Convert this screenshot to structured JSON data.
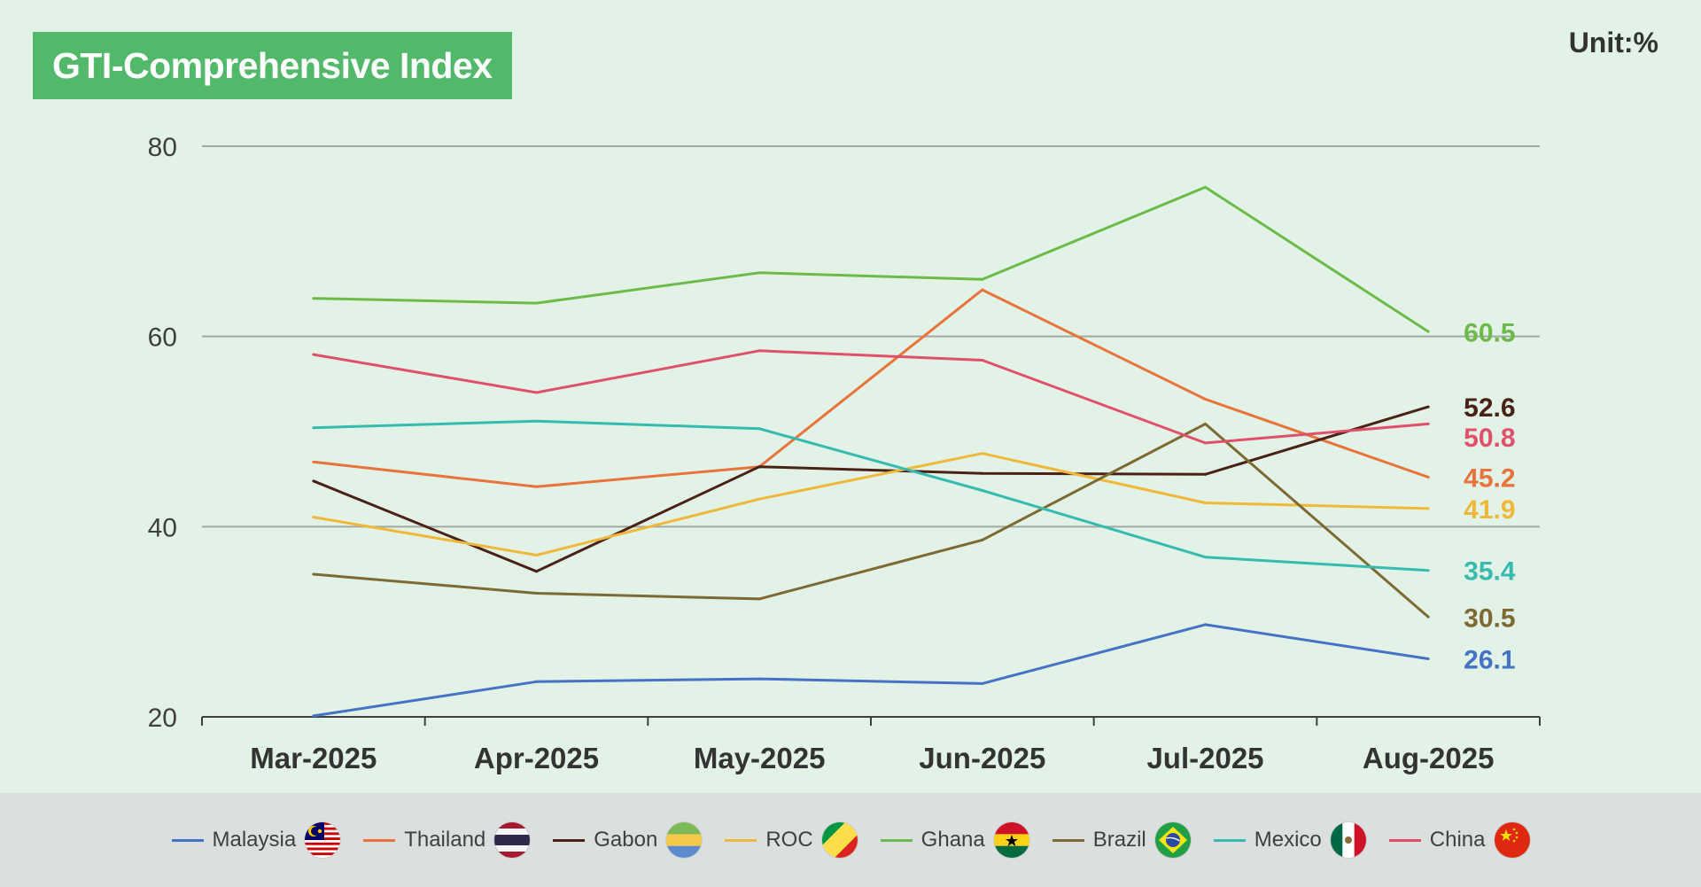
{
  "title": "GTI-Comprehensive Index",
  "unit": "Unit:%",
  "chart_data": {
    "type": "line",
    "categories": [
      "Mar-2025",
      "Apr-2025",
      "May-2025",
      "Jun-2025",
      "Jul-2025",
      "Aug-2025"
    ],
    "ylim": [
      20,
      80
    ],
    "yticks": [
      "20",
      "40",
      "60",
      "80"
    ],
    "grid": true,
    "legend_position": "bottom",
    "series": [
      {
        "name": "Malaysia",
        "color": "#4472c4",
        "values": [
          20.1,
          23.7,
          24.0,
          23.5,
          29.7,
          26.1
        ],
        "end_label": "26.1",
        "flag": "malaysia-flag-icon"
      },
      {
        "name": "Thailand",
        "color": "#e8743b",
        "values": [
          46.8,
          44.2,
          46.3,
          64.9,
          53.4,
          45.2
        ],
        "end_label": "45.2",
        "flag": "thailand-flag-icon"
      },
      {
        "name": "Gabon",
        "color": "#4a2215",
        "values": [
          44.8,
          35.3,
          46.3,
          45.6,
          45.5,
          52.6
        ],
        "end_label": "52.6",
        "flag": "gabon-flag-icon"
      },
      {
        "name": "ROC",
        "color": "#f0b83a",
        "values": [
          41.0,
          37.0,
          42.9,
          47.7,
          42.5,
          41.9
        ],
        "end_label": "41.9",
        "flag": "roc-flag-icon"
      },
      {
        "name": "Ghana",
        "color": "#6cbb4a",
        "values": [
          64.0,
          63.5,
          66.7,
          66.0,
          75.7,
          60.5
        ],
        "end_label": "60.5",
        "flag": "ghana-flag-icon"
      },
      {
        "name": "Brazil",
        "color": "#7d6a33",
        "values": [
          35.0,
          33.0,
          32.4,
          38.6,
          50.8,
          30.5
        ],
        "end_label": "30.5",
        "flag": "brazil-flag-icon"
      },
      {
        "name": "Mexico",
        "color": "#37bbb0",
        "values": [
          50.4,
          51.1,
          50.3,
          43.8,
          36.8,
          35.4
        ],
        "end_label": "35.4",
        "flag": "mexico-flag-icon"
      },
      {
        "name": "China",
        "color": "#e0506a",
        "values": [
          58.1,
          54.1,
          58.5,
          57.5,
          48.8,
          50.8
        ],
        "end_label": "50.8",
        "flag": "china-flag-icon"
      }
    ]
  }
}
